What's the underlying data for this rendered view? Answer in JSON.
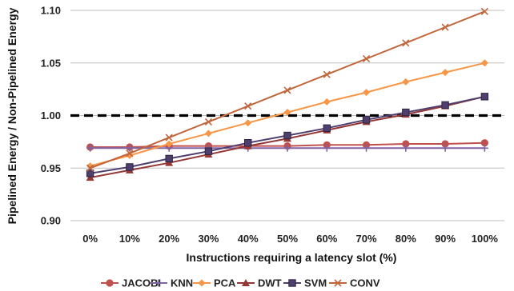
{
  "chart_data": {
    "type": "line",
    "xlabel": "Instructions requiring a latency slot (%)",
    "ylabel": "Pipelined Energy / Non-Pipelined Energy",
    "categories": [
      "0%",
      "10%",
      "20%",
      "30%",
      "40%",
      "50%",
      "60%",
      "70%",
      "80%",
      "90%",
      "100%"
    ],
    "ylim": [
      0.9,
      1.1
    ],
    "yticks": [
      "0.90",
      "0.95",
      "1.00",
      "1.05",
      "1.10"
    ],
    "grid": "horizontal",
    "legend_position": "bottom",
    "reference_line": 1.0,
    "series": [
      {
        "name": "JACOBI",
        "marker": "circle",
        "color": "#c0504d",
        "values": [
          0.97,
          0.97,
          0.971,
          0.971,
          0.971,
          0.971,
          0.972,
          0.972,
          0.973,
          0.973,
          0.974
        ]
      },
      {
        "name": "KNN",
        "marker": "plus",
        "color": "#8064a2",
        "values": [
          0.969,
          0.969,
          0.969,
          0.969,
          0.969,
          0.969,
          0.969,
          0.969,
          0.969,
          0.969,
          0.969
        ]
      },
      {
        "name": "PCA",
        "marker": "diamond",
        "color": "#f79646",
        "values": [
          0.952,
          0.962,
          0.973,
          0.983,
          0.993,
          1.003,
          1.013,
          1.022,
          1.032,
          1.041,
          1.05
        ]
      },
      {
        "name": "DWT",
        "marker": "triangle",
        "color": "#953735",
        "values": [
          0.941,
          0.948,
          0.955,
          0.963,
          0.971,
          0.978,
          0.986,
          0.994,
          1.001,
          1.009,
          1.018
        ]
      },
      {
        "name": "SVM",
        "marker": "square",
        "color": "#4f3f6e",
        "values": [
          0.945,
          0.951,
          0.959,
          0.966,
          0.974,
          0.981,
          0.988,
          0.996,
          1.003,
          1.01,
          1.018
        ]
      },
      {
        "name": "CONV",
        "marker": "x",
        "color": "#c0653a",
        "values": [
          0.95,
          0.964,
          0.979,
          0.994,
          1.009,
          1.024,
          1.039,
          1.054,
          1.069,
          1.084,
          1.099
        ]
      }
    ]
  }
}
